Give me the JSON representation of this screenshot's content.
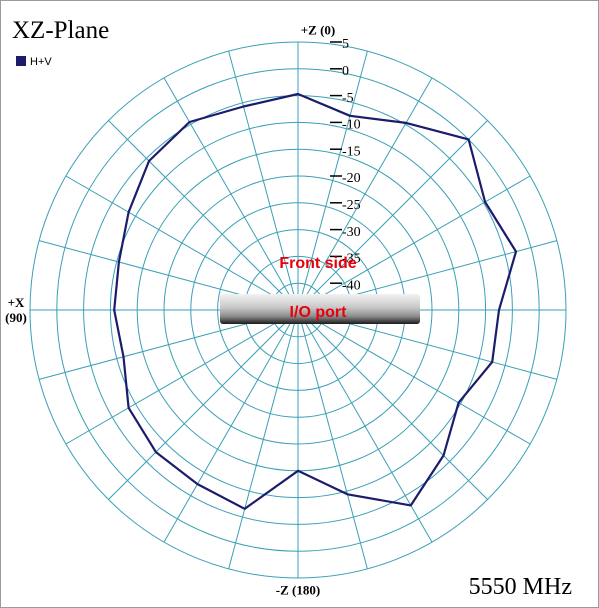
{
  "chart_data": {
    "type": "polar",
    "title": "XZ-Plane",
    "subtitle": "5550 MHz",
    "zero": "top",
    "direction": "counterclockwise",
    "x": [
      0,
      15,
      30,
      45,
      60,
      75,
      90,
      105,
      120,
      135,
      150,
      165,
      180,
      195,
      210,
      225,
      240,
      255,
      270,
      285,
      300,
      315,
      330,
      345
    ],
    "series": [
      {
        "name": "H+V",
        "color": "#1c1c6b",
        "values": [
          -4.7,
          -5.7,
          -4.5,
          -5.7,
          -8.5,
          -10.4,
          -10.7,
          -11.3,
          -8.5,
          -7.5,
          -7.5,
          -6.6,
          -15,
          -9.4,
          -2.9,
          -6.6,
          -10.4,
          -7.5,
          -7.5,
          -2.9,
          -4.7,
          0,
          -4.7,
          -7.5
        ]
      }
    ],
    "rlim": [
      -45,
      5
    ],
    "rticks": [
      5,
      0,
      -5,
      -10,
      -15,
      -20,
      -25,
      -30,
      -35,
      -40
    ],
    "thetagrid": [
      0,
      15,
      30,
      45,
      60,
      75,
      90,
      105,
      120,
      135,
      150,
      165,
      180,
      195,
      210,
      225,
      240,
      255,
      270,
      285,
      300,
      315,
      330,
      345
    ],
    "angle_labels": [
      {
        "value": 0,
        "label": "+Z (0)"
      },
      {
        "value": 90,
        "label": "+X\n(90)"
      },
      {
        "value": 180,
        "label": "-Z (180)"
      }
    ],
    "grid_color": "#3aa0b5",
    "legend": "top-left",
    "annotations": [
      "Front side",
      "I/O port"
    ]
  }
}
